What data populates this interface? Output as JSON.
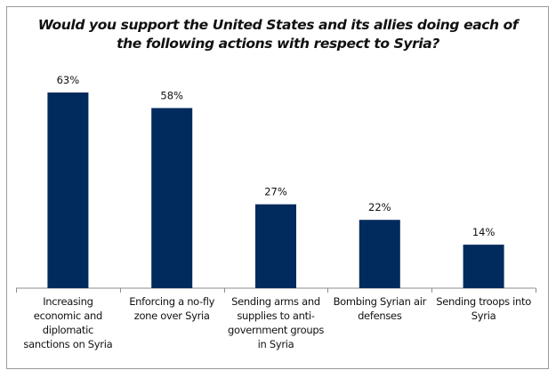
{
  "chart_data": {
    "type": "bar",
    "title": "Would you support the United States and its allies doing each of the following actions with respect to Syria?",
    "categories": [
      "Increasing economic and diplomatic sanctions on Syria",
      "Enforcing a no-fly zone over Syria",
      "Sending arms and supplies to anti-government groups in Syria",
      "Bombing Syrian air defenses",
      "Sending troops into Syria"
    ],
    "values": [
      63,
      58,
      27,
      22,
      14
    ],
    "data_labels": [
      "63%",
      "58%",
      "27%",
      "22%",
      "14%"
    ],
    "xlabel": "",
    "ylabel": "",
    "ylim": [
      0,
      63
    ],
    "grid": false,
    "legend": "none",
    "bar_color": "#002B5C"
  }
}
